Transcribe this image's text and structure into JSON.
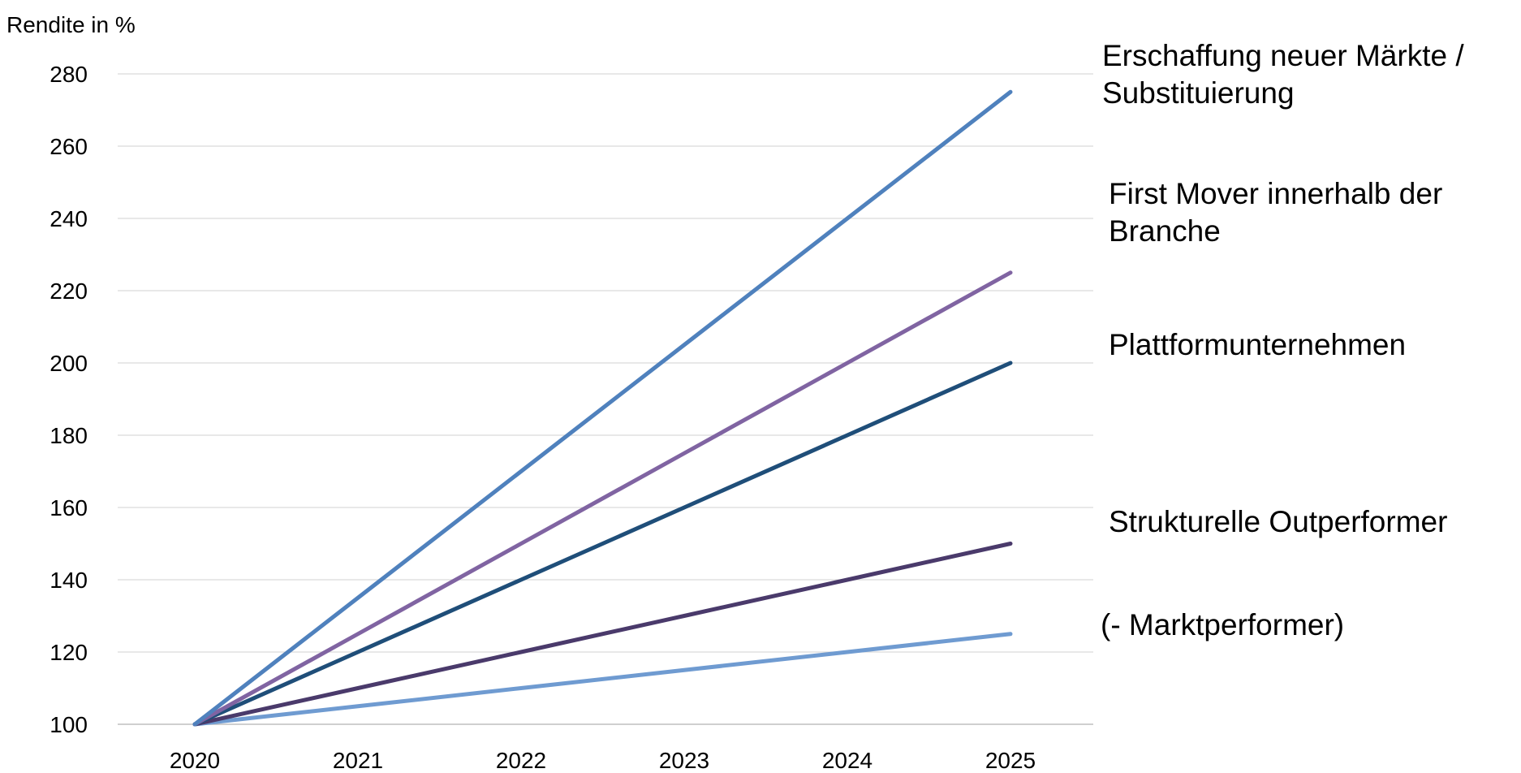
{
  "chart_data": {
    "type": "line",
    "ylabel": "Rendite in %",
    "xlabel": "",
    "x": [
      "2020",
      "2021",
      "2022",
      "2023",
      "2024",
      "2025"
    ],
    "ylim": [
      100,
      280
    ],
    "yticks": [
      100,
      120,
      140,
      160,
      180,
      200,
      220,
      240,
      260,
      280
    ],
    "grid": true,
    "series": [
      {
        "name": "Erschaffung neuer Märkte / Substituierung",
        "color": "#4f81bd",
        "values": [
          100,
          135,
          170,
          205,
          240,
          275
        ]
      },
      {
        "name": "First Mover innerhalb der Branche",
        "color": "#8064a2",
        "values": [
          100,
          125,
          150,
          175,
          200,
          225
        ]
      },
      {
        "name": "Plattformunternehmen",
        "color": "#1f4e79",
        "values": [
          100,
          120,
          140,
          160,
          180,
          200
        ]
      },
      {
        "name": "Strukturelle Outperformer",
        "color": "#4a3a6b",
        "values": [
          100,
          110,
          120,
          130,
          140,
          150
        ]
      },
      {
        "name": "(- Marktperformer)",
        "color": "#6f9bd1",
        "values": [
          100,
          105,
          110,
          115,
          120,
          125
        ]
      }
    ]
  }
}
